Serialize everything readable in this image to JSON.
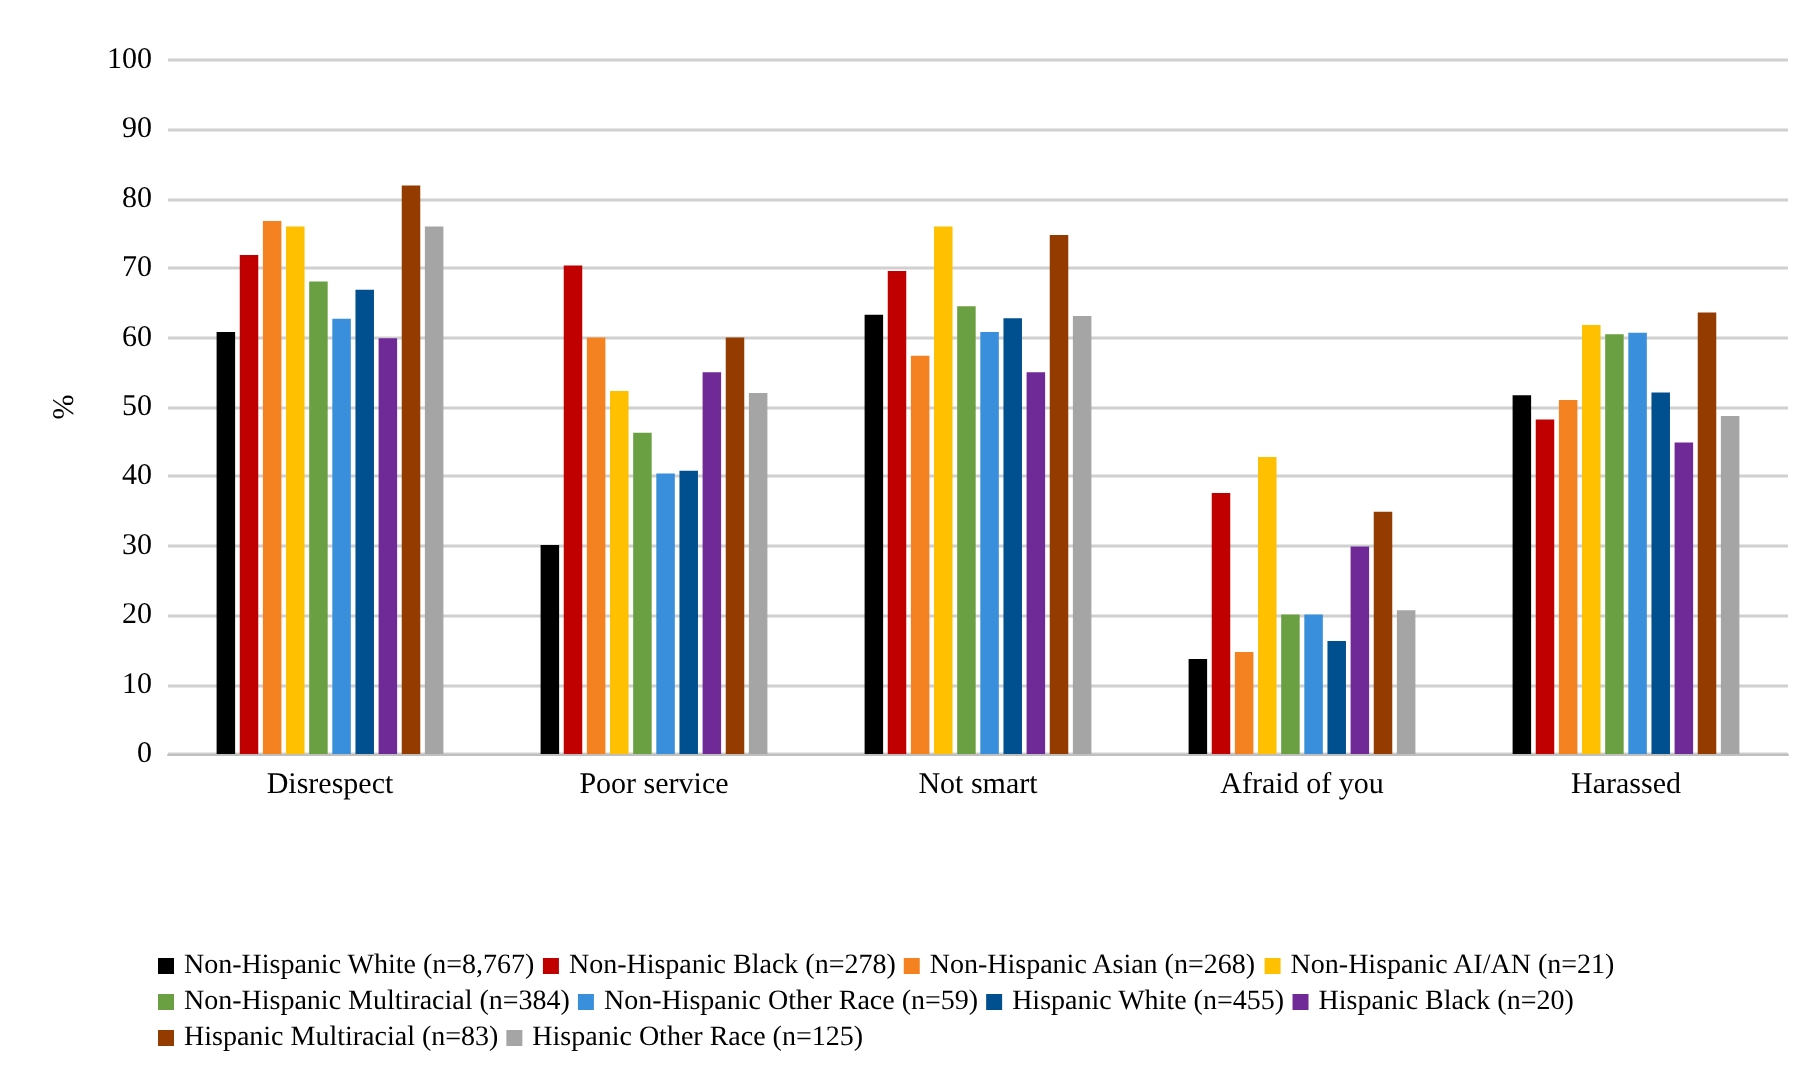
{
  "chart_data": {
    "type": "bar",
    "ylabel": "%",
    "categories": [
      "Disrespect",
      "Poor service",
      "Not smart",
      "Afraid of you",
      "Harassed"
    ],
    "series": [
      {
        "name": "Non-Hispanic White (n=8,767)",
        "color": "#000000",
        "values": [
          60.8,
          30.1,
          63.3,
          13.7,
          51.7
        ]
      },
      {
        "name": "Non-Hispanic Black (n=278)",
        "color": "#c00000",
        "values": [
          71.9,
          70.4,
          69.6,
          37.6,
          48.2
        ]
      },
      {
        "name": "Non-Hispanic Asian (n=268)",
        "color": "#f58220",
        "values": [
          76.8,
          60,
          57.4,
          14.7,
          51
        ]
      },
      {
        "name": "Non-Hispanic AI/AN (n=21)",
        "color": "#ffc000",
        "values": [
          76,
          52.3,
          76,
          42.8,
          61.8
        ]
      },
      {
        "name": "Non-Hispanic Multiracial (n=384)",
        "color": "#6aa042",
        "values": [
          68.1,
          46.3,
          64.5,
          20.1,
          60.5
        ]
      },
      {
        "name": "Non-Hispanic Other Race (n=59)",
        "color": "#3a8fdc",
        "values": [
          62.7,
          40.4,
          60.8,
          20.1,
          60.7
        ]
      },
      {
        "name": "Hispanic White (n=455)",
        "color": "#00508f",
        "values": [
          66.9,
          40.8,
          62.8,
          16.3,
          52.1
        ]
      },
      {
        "name": "Hispanic Black (n=20)",
        "color": "#702a98",
        "values": [
          59.9,
          55,
          55,
          29.9,
          44.9
        ]
      },
      {
        "name": "Hispanic Multiracial (n=83)",
        "color": "#943c00",
        "values": [
          81.9,
          60,
          74.8,
          34.9,
          63.6
        ]
      },
      {
        "name": "Hispanic Other Race (n=125)",
        "color": "#a5a5a5",
        "values": [
          76,
          52,
          63.1,
          20.7,
          48.7
        ]
      }
    ],
    "ylim": [
      0,
      100
    ],
    "yticks": [
      0,
      10,
      20,
      30,
      40,
      50,
      60,
      70,
      80,
      90,
      100
    ],
    "grid": "y",
    "legend": "bottom"
  }
}
